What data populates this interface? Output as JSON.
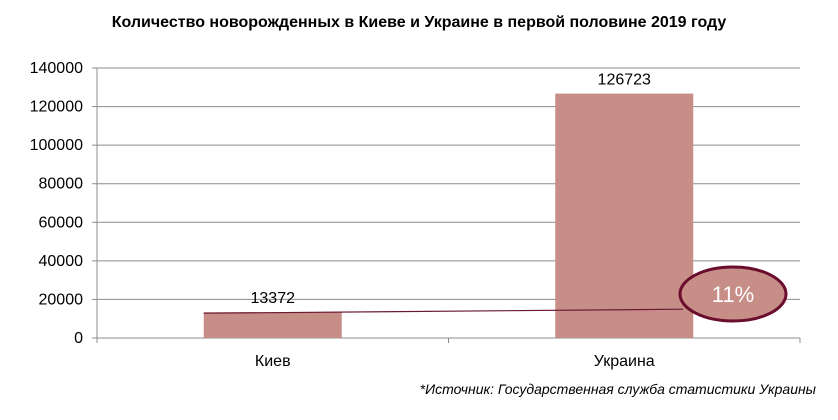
{
  "chart_data": {
    "type": "bar",
    "title": "Количество новорожденных в Киеве и Украине в первой половине 2019 году",
    "categories": [
      "Киев",
      "Украина"
    ],
    "values": [
      13372,
      126723
    ],
    "data_labels": [
      "13372",
      "126723"
    ],
    "xlabel": "",
    "ylabel": "",
    "ylim": [
      0,
      140000
    ],
    "yticks": [
      0,
      20000,
      40000,
      60000,
      80000,
      100000,
      120000,
      140000
    ],
    "grid": true,
    "legend": "none",
    "bar_color": "#c78d87",
    "connector_line_color": "#6b1a32",
    "annotation": {
      "text": "11%",
      "shape": "ellipse",
      "fill": "#c78d87",
      "border_color": "#6b0d2e"
    }
  },
  "source_note": "*Источник: Государственная служба статистики Украины"
}
